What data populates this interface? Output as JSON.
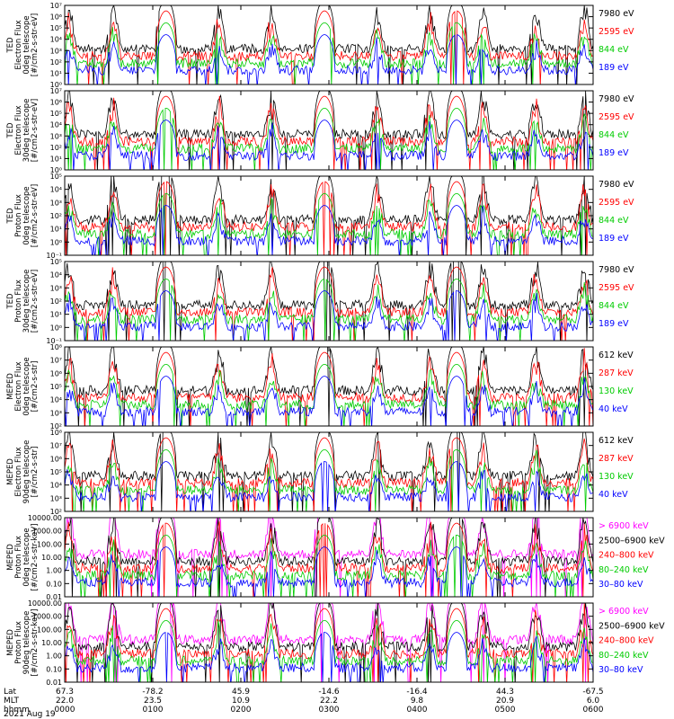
{
  "chart_data": {
    "type": "line",
    "date_label": "2021 Aug 19",
    "x_axis": {
      "rows": [
        {
          "label": "Lat",
          "values": [
            "67.3",
            "-78.2",
            "45.9",
            "-14.6",
            "-16.4",
            "44.3",
            "-67.5"
          ]
        },
        {
          "label": "MLT",
          "values": [
            "22.0",
            "23.5",
            "10.9",
            "22.2",
            "9.8",
            "20.9",
            "6.0"
          ]
        },
        {
          "label": "hhmm",
          "values": [
            "0000",
            "0100",
            "0200",
            "0300",
            "0400",
            "0500",
            "0600"
          ]
        }
      ]
    },
    "panels": [
      {
        "ylabel": [
          "TED",
          "Electron Flux",
          "0deg telescope",
          "[#/cm2-s-str-eV]"
        ],
        "yscale": "log",
        "ylim_exp": [
          0,
          7
        ],
        "tick_labels": [
          "10⁰",
          "10¹",
          "10²",
          "10³",
          "10⁴",
          "10⁵",
          "10⁶",
          "10⁷"
        ],
        "series": [
          {
            "name": "7980 eV",
            "color": "#000000"
          },
          {
            "name": "2595 eV",
            "color": "#ff0000"
          },
          {
            "name": "844 eV",
            "color": "#00cc00"
          },
          {
            "name": "189 eV",
            "color": "#0000ff"
          }
        ]
      },
      {
        "ylabel": [
          "TED",
          "Electron Flux",
          "30deg telescope",
          "[#/cm2-s-str-eV]"
        ],
        "yscale": "log",
        "ylim_exp": [
          0,
          7
        ],
        "tick_labels": [
          "10⁰",
          "10¹",
          "10²",
          "10³",
          "10⁴",
          "10⁵",
          "10⁶",
          "10⁷"
        ],
        "series": [
          {
            "name": "7980 eV",
            "color": "#000000"
          },
          {
            "name": "2595 eV",
            "color": "#ff0000"
          },
          {
            "name": "844 eV",
            "color": "#00cc00"
          },
          {
            "name": "189 eV",
            "color": "#0000ff"
          }
        ]
      },
      {
        "ylabel": [
          "TED",
          "Proton Flux",
          "0deg telescope",
          "[#/cm2-s-str-eV]"
        ],
        "yscale": "log",
        "ylim_exp": [
          -1,
          5
        ],
        "tick_labels": [
          "10⁻¹",
          "10⁰",
          "10¹",
          "10²",
          "10³",
          "10⁴",
          "10⁵"
        ],
        "series": [
          {
            "name": "7980 eV",
            "color": "#000000"
          },
          {
            "name": "2595 eV",
            "color": "#ff0000"
          },
          {
            "name": "844 eV",
            "color": "#00cc00"
          },
          {
            "name": "189 eV",
            "color": "#0000ff"
          }
        ]
      },
      {
        "ylabel": [
          "TED",
          "Proton Flux",
          "30deg telescope",
          "[#/cm2-s-str-eV]"
        ],
        "yscale": "log",
        "ylim_exp": [
          -1,
          5
        ],
        "tick_labels": [
          "10⁻¹",
          "10⁰",
          "10¹",
          "10²",
          "10³",
          "10⁴",
          "10⁵"
        ],
        "series": [
          {
            "name": "7980 eV",
            "color": "#000000"
          },
          {
            "name": "2595 eV",
            "color": "#ff0000"
          },
          {
            "name": "844 eV",
            "color": "#00cc00"
          },
          {
            "name": "189 eV",
            "color": "#0000ff"
          }
        ]
      },
      {
        "ylabel": [
          "MEPED",
          "Electron Flux",
          "0deg telescope",
          "[#/cm2-s-str]"
        ],
        "yscale": "log",
        "ylim_exp": [
          2,
          8
        ],
        "tick_labels": [
          "10²",
          "10³",
          "10⁴",
          "10⁵",
          "10⁶",
          "10⁷",
          "10⁸"
        ],
        "series": [
          {
            "name": "612 keV",
            "color": "#000000"
          },
          {
            "name": "287 keV",
            "color": "#ff0000"
          },
          {
            "name": "130 keV",
            "color": "#00cc00"
          },
          {
            "name": "40 keV",
            "color": "#0000ff"
          }
        ]
      },
      {
        "ylabel": [
          "MEPED",
          "Electron Flux",
          "90deg telescope",
          "[#/cm2-s-str]"
        ],
        "yscale": "log",
        "ylim_exp": [
          2,
          8
        ],
        "tick_labels": [
          "10²",
          "10³",
          "10⁴",
          "10⁵",
          "10⁶",
          "10⁷",
          "10⁸"
        ],
        "series": [
          {
            "name": "612 keV",
            "color": "#000000"
          },
          {
            "name": "287 keV",
            "color": "#ff0000"
          },
          {
            "name": "130 keV",
            "color": "#00cc00"
          },
          {
            "name": "40 keV",
            "color": "#0000ff"
          }
        ]
      },
      {
        "ylabel": [
          "MEPED",
          "Proton Flux",
          "0deg telescope",
          "[#/cm2-s-str-keV]"
        ],
        "yscale": "log",
        "ylim_exp": [
          -2,
          4
        ],
        "tick_labels": [
          "0.01",
          "0.10",
          "1.00",
          "10.00",
          "100.00",
          "1000.00",
          "10000.00"
        ],
        "series": [
          {
            "name": "> 6900 keV",
            "color": "#ff00ff"
          },
          {
            "name": "2500–6900 keV",
            "color": "#000000"
          },
          {
            "name": "240–800 keV",
            "color": "#ff0000"
          },
          {
            "name": "80–240 keV",
            "color": "#00cc00"
          },
          {
            "name": "30–80 keV",
            "color": "#0000ff"
          }
        ]
      },
      {
        "ylabel": [
          "MEPED",
          "Proton Flux",
          "90deg telescope",
          "[#/cm2-s-str-keV]"
        ],
        "yscale": "log",
        "ylim_exp": [
          -2,
          4
        ],
        "tick_labels": [
          "0.01",
          "0.10",
          "1.00",
          "10.00",
          "100.00",
          "1000.00",
          "10000.00"
        ],
        "series": [
          {
            "name": "> 6900 keV",
            "color": "#ff00ff"
          },
          {
            "name": "2500–6900 keV",
            "color": "#000000"
          },
          {
            "name": "240–800 keV",
            "color": "#ff0000"
          },
          {
            "name": "80–240 keV",
            "color": "#00cc00"
          },
          {
            "name": "30–80 keV",
            "color": "#0000ff"
          }
        ]
      }
    ]
  }
}
